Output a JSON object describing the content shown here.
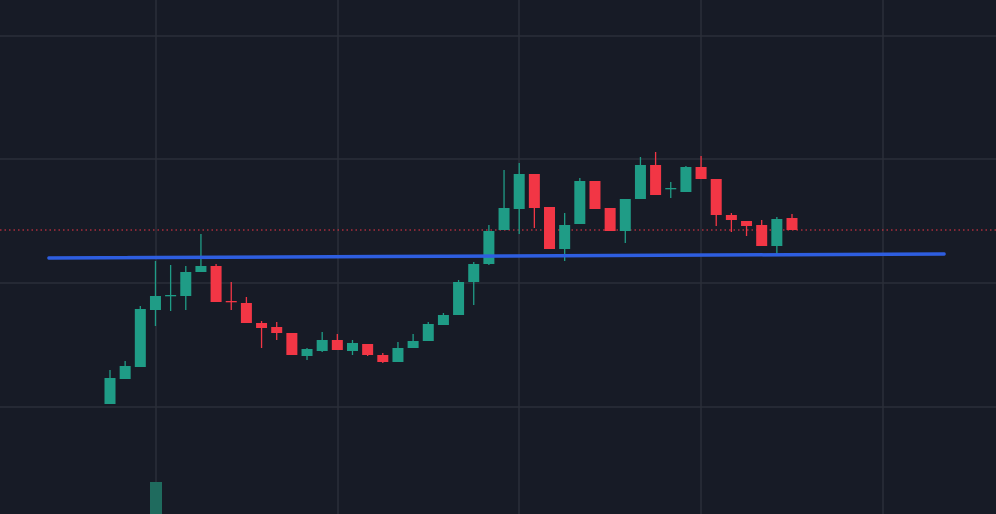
{
  "chart_data": {
    "type": "candlestick",
    "categories": [
      null,
      null,
      null,
      null,
      null,
      null,
      null,
      null,
      null,
      null,
      null,
      null,
      null,
      null,
      null,
      null,
      null,
      null,
      null,
      null,
      null,
      null,
      null,
      null,
      null,
      null,
      null,
      null,
      null,
      null,
      null,
      null,
      null,
      null,
      null,
      null,
      null,
      null,
      null,
      null,
      null,
      null,
      null,
      null,
      null,
      null
    ],
    "open": [
      110,
      135,
      147,
      204,
      218,
      218,
      242,
      248,
      213,
      211,
      191,
      187,
      181,
      158,
      163,
      174,
      163,
      170,
      159,
      152,
      166,
      173,
      189,
      199,
      232,
      250,
      284,
      305,
      340,
      307,
      265,
      290,
      333,
      306,
      283,
      315,
      349,
      325,
      322,
      347,
      335,
      299,
      293,
      289,
      268,
      296
    ],
    "high": [
      144,
      153,
      208,
      253,
      249,
      248,
      280,
      250,
      232,
      217,
      193,
      192,
      181,
      166,
      182,
      180,
      174,
      170,
      161,
      172,
      180,
      192,
      201,
      234,
      252,
      289,
      344,
      351,
      340,
      307,
      301,
      336,
      333,
      306,
      315,
      357,
      362,
      332,
      348,
      358,
      335,
      301,
      293,
      294,
      297,
      300
    ],
    "low": [
      110,
      135,
      147,
      188,
      203,
      204,
      242,
      212,
      204,
      191,
      166,
      174,
      159,
      154,
      162,
      164,
      159,
      158,
      151,
      152,
      166,
      173,
      189,
      199,
      209,
      249,
      284,
      280,
      286,
      265,
      253,
      290,
      305,
      283,
      271,
      315,
      319,
      316,
      322,
      335,
      288,
      282,
      278,
      268,
      259,
      284
    ],
    "close": [
      136,
      148,
      205,
      218,
      219,
      242,
      248,
      212,
      212,
      191,
      186,
      181,
      159,
      165,
      174,
      164,
      171,
      159,
      152,
      166,
      173,
      190,
      199,
      232,
      250,
      283,
      306,
      340,
      306,
      265,
      289,
      333,
      305,
      283,
      315,
      349,
      319,
      326,
      347,
      335,
      299,
      294,
      288,
      268,
      295,
      284
    ],
    "up_color": "#1f9c86",
    "down_color": "#f23645",
    "ylim": [
      0,
      514
    ]
  }
}
